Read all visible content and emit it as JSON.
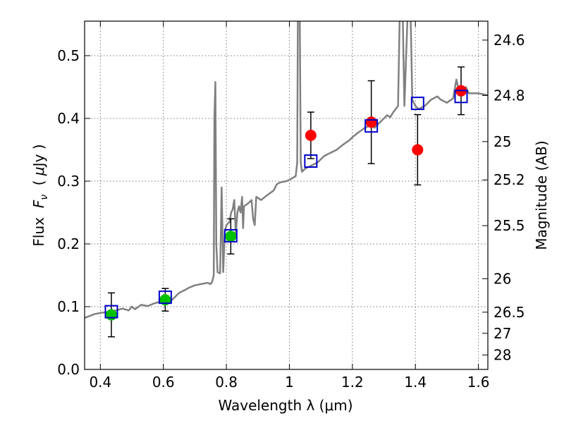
{
  "chart_data": {
    "type": "scatter",
    "xlabel": "Wavelength  λ (μm)",
    "ylabel_left": {
      "prefix": "Flux  ",
      "symbol": "F",
      "sub": "ν",
      "mid": "  ( ",
      "mu": "μ",
      "suffix": "Jy )"
    },
    "ylabel_right": "Magnitude (AB)",
    "xlim": [
      0.35,
      1.63
    ],
    "ylim": [
      0.0,
      0.555
    ],
    "grid": true,
    "x_ticks": [
      0.4,
      0.6,
      0.8,
      1.0,
      1.2,
      1.4,
      1.6
    ],
    "x_tick_labels": [
      "0.4",
      "0.6",
      "0.8",
      "1",
      "1.2",
      "1.4",
      "1.6"
    ],
    "y_ticks": [
      0.0,
      0.1,
      0.2,
      0.3,
      0.4,
      0.5
    ],
    "y_tick_labels": [
      "0.0",
      "0.1",
      "0.2",
      "0.3",
      "0.4",
      "0.5"
    ],
    "mag_ticks": [
      24.6,
      24.8,
      25,
      25.2,
      25.5,
      26,
      26.5,
      27,
      28
    ],
    "mag_tick_labels": [
      "24.6",
      "24.8",
      "25",
      "25.2",
      "25.5",
      "26",
      "26.5",
      "27",
      "28"
    ],
    "colors": {
      "template": "#808080",
      "green": "#00c000",
      "red": "#ff0000",
      "model_box": "#0000cc",
      "grid": "#777777"
    },
    "series": [
      {
        "name": "template-spectrum",
        "kind": "line",
        "points": [
          [
            0.35,
            0.082
          ],
          [
            0.38,
            0.088
          ],
          [
            0.4,
            0.09
          ],
          [
            0.43,
            0.092
          ],
          [
            0.45,
            0.094
          ],
          [
            0.47,
            0.097
          ],
          [
            0.49,
            0.094
          ],
          [
            0.5,
            0.1
          ],
          [
            0.51,
            0.096
          ],
          [
            0.53,
            0.103
          ],
          [
            0.55,
            0.101
          ],
          [
            0.57,
            0.105
          ],
          [
            0.59,
            0.108
          ],
          [
            0.61,
            0.109
          ],
          [
            0.62,
            0.107
          ],
          [
            0.63,
            0.112
          ],
          [
            0.65,
            0.122
          ],
          [
            0.67,
            0.127
          ],
          [
            0.68,
            0.13
          ],
          [
            0.7,
            0.134
          ],
          [
            0.72,
            0.136
          ],
          [
            0.74,
            0.138
          ],
          [
            0.75,
            0.136
          ],
          [
            0.755,
            0.14
          ],
          [
            0.76,
            0.15
          ],
          [
            0.762,
            0.4
          ],
          [
            0.765,
            0.458
          ],
          [
            0.768,
            0.2
          ],
          [
            0.772,
            0.155
          ],
          [
            0.78,
            0.153
          ],
          [
            0.785,
            0.29
          ],
          [
            0.79,
            0.155
          ],
          [
            0.795,
            0.22
          ],
          [
            0.8,
            0.23
          ],
          [
            0.81,
            0.235
          ],
          [
            0.815,
            0.25
          ],
          [
            0.82,
            0.255
          ],
          [
            0.825,
            0.27
          ],
          [
            0.83,
            0.215
          ],
          [
            0.835,
            0.25
          ],
          [
            0.84,
            0.26
          ],
          [
            0.845,
            0.25
          ],
          [
            0.85,
            0.275
          ],
          [
            0.853,
            0.225
          ],
          [
            0.856,
            0.26
          ],
          [
            0.87,
            0.265
          ],
          [
            0.88,
            0.27
          ],
          [
            0.885,
            0.24
          ],
          [
            0.89,
            0.23
          ],
          [
            0.895,
            0.275
          ],
          [
            0.91,
            0.27
          ],
          [
            0.93,
            0.278
          ],
          [
            0.95,
            0.285
          ],
          [
            0.96,
            0.295
          ],
          [
            0.97,
            0.298
          ],
          [
            0.99,
            0.3
          ],
          [
            1.0,
            0.302
          ],
          [
            1.01,
            0.305
          ],
          [
            1.02,
            0.308
          ],
          [
            1.025,
            0.33
          ],
          [
            1.027,
            0.56
          ],
          [
            1.033,
            0.56
          ],
          [
            1.036,
            0.33
          ],
          [
            1.04,
            0.315
          ],
          [
            1.05,
            0.32
          ],
          [
            1.07,
            0.325
          ],
          [
            1.09,
            0.33
          ],
          [
            1.11,
            0.34
          ],
          [
            1.13,
            0.345
          ],
          [
            1.15,
            0.35
          ],
          [
            1.17,
            0.358
          ],
          [
            1.19,
            0.365
          ],
          [
            1.2,
            0.37
          ],
          [
            1.22,
            0.378
          ],
          [
            1.24,
            0.385
          ],
          [
            1.26,
            0.39
          ],
          [
            1.27,
            0.385
          ],
          [
            1.29,
            0.395
          ],
          [
            1.31,
            0.405
          ],
          [
            1.32,
            0.402
          ],
          [
            1.33,
            0.41
          ],
          [
            1.345,
            0.42
          ],
          [
            1.35,
            0.56
          ],
          [
            1.36,
            0.56
          ],
          [
            1.365,
            0.42
          ],
          [
            1.375,
            0.56
          ],
          [
            1.385,
            0.56
          ],
          [
            1.39,
            0.43
          ],
          [
            1.4,
            0.42
          ],
          [
            1.41,
            0.415
          ],
          [
            1.43,
            0.42
          ],
          [
            1.45,
            0.43
          ],
          [
            1.47,
            0.435
          ],
          [
            1.48,
            0.43
          ],
          [
            1.5,
            0.425
          ],
          [
            1.52,
            0.432
          ],
          [
            1.53,
            0.462
          ],
          [
            1.54,
            0.44
          ],
          [
            1.56,
            0.45
          ],
          [
            1.57,
            0.44
          ],
          [
            1.6,
            0.44
          ],
          [
            1.63,
            0.437
          ]
        ]
      },
      {
        "name": "green-photometry",
        "kind": "points",
        "points": [
          {
            "x": 0.435,
            "y": 0.087,
            "err": 0.035
          },
          {
            "x": 0.606,
            "y": 0.111,
            "err": 0.018
          },
          {
            "x": 0.814,
            "y": 0.212,
            "err": 0.028
          }
        ]
      },
      {
        "name": "red-photometry",
        "kind": "points",
        "points": [
          {
            "x": 1.068,
            "y": 0.373,
            "err": 0.037
          },
          {
            "x": 1.26,
            "y": 0.394,
            "err": 0.066
          },
          {
            "x": 1.407,
            "y": 0.35,
            "err": 0.056
          },
          {
            "x": 1.545,
            "y": 0.444,
            "err": 0.038
          }
        ]
      },
      {
        "name": "model-boxes",
        "kind": "squares",
        "points": [
          {
            "x": 0.435,
            "y": 0.092
          },
          {
            "x": 0.606,
            "y": 0.115
          },
          {
            "x": 0.814,
            "y": 0.213
          },
          {
            "x": 1.068,
            "y": 0.332
          },
          {
            "x": 1.26,
            "y": 0.388
          },
          {
            "x": 1.407,
            "y": 0.424
          },
          {
            "x": 1.545,
            "y": 0.435
          }
        ]
      }
    ]
  }
}
